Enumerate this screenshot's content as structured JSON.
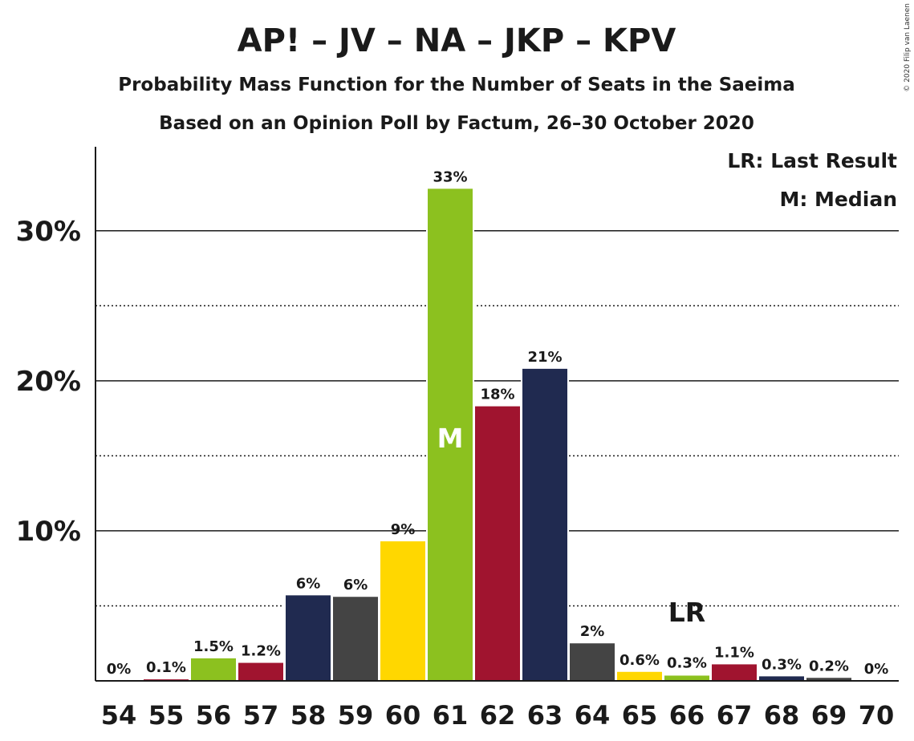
{
  "title": "AP! – JV – NA – JKP – KPV",
  "subtitle1": "Probability Mass Function for the Number of Seats in the Saeima",
  "subtitle2": "Based on an Opinion Poll by Factum, 26–30 October 2020",
  "legend": {
    "last_result": "LR: Last Result",
    "median": "M: Median"
  },
  "copyright": "© 2020 Filip van Laenen",
  "chart_data": {
    "type": "bar",
    "categories": [
      "54",
      "55",
      "56",
      "57",
      "58",
      "59",
      "60",
      "61",
      "62",
      "63",
      "64",
      "65",
      "66",
      "67",
      "68",
      "69",
      "70"
    ],
    "values": [
      0,
      0.1,
      1.5,
      1.2,
      5.7,
      5.6,
      9.3,
      32.8,
      18.3,
      20.8,
      2.5,
      0.6,
      0.35,
      1.1,
      0.3,
      0.2,
      0
    ],
    "labels": [
      "0%",
      "0.1%",
      "1.5%",
      "1.2%",
      "6%",
      "6%",
      "9%",
      "33%",
      "18%",
      "21%",
      "2%",
      "0.6%",
      "0.3%",
      "1.1%",
      "0.3%",
      "0.2%",
      "0%"
    ],
    "colors": [
      "#8CC11F",
      "#A0142F",
      "#8CC11F",
      "#A0142F",
      "#202A50",
      "#444444",
      "#FFD700",
      "#8CC11F",
      "#A0142F",
      "#202A50",
      "#444444",
      "#FFD700",
      "#8CC11F",
      "#A0142F",
      "#202A50",
      "#444444",
      "#FFD700"
    ],
    "ylim": [
      0,
      35.6
    ],
    "yticks": [
      10,
      20,
      30
    ],
    "ytick_labels": [
      "10%",
      "20%",
      "30%"
    ],
    "minor_gridlines": [
      5,
      15,
      25
    ],
    "median": {
      "category": "61",
      "label": "M"
    },
    "last_result": {
      "category": "66",
      "label": "LR"
    }
  }
}
